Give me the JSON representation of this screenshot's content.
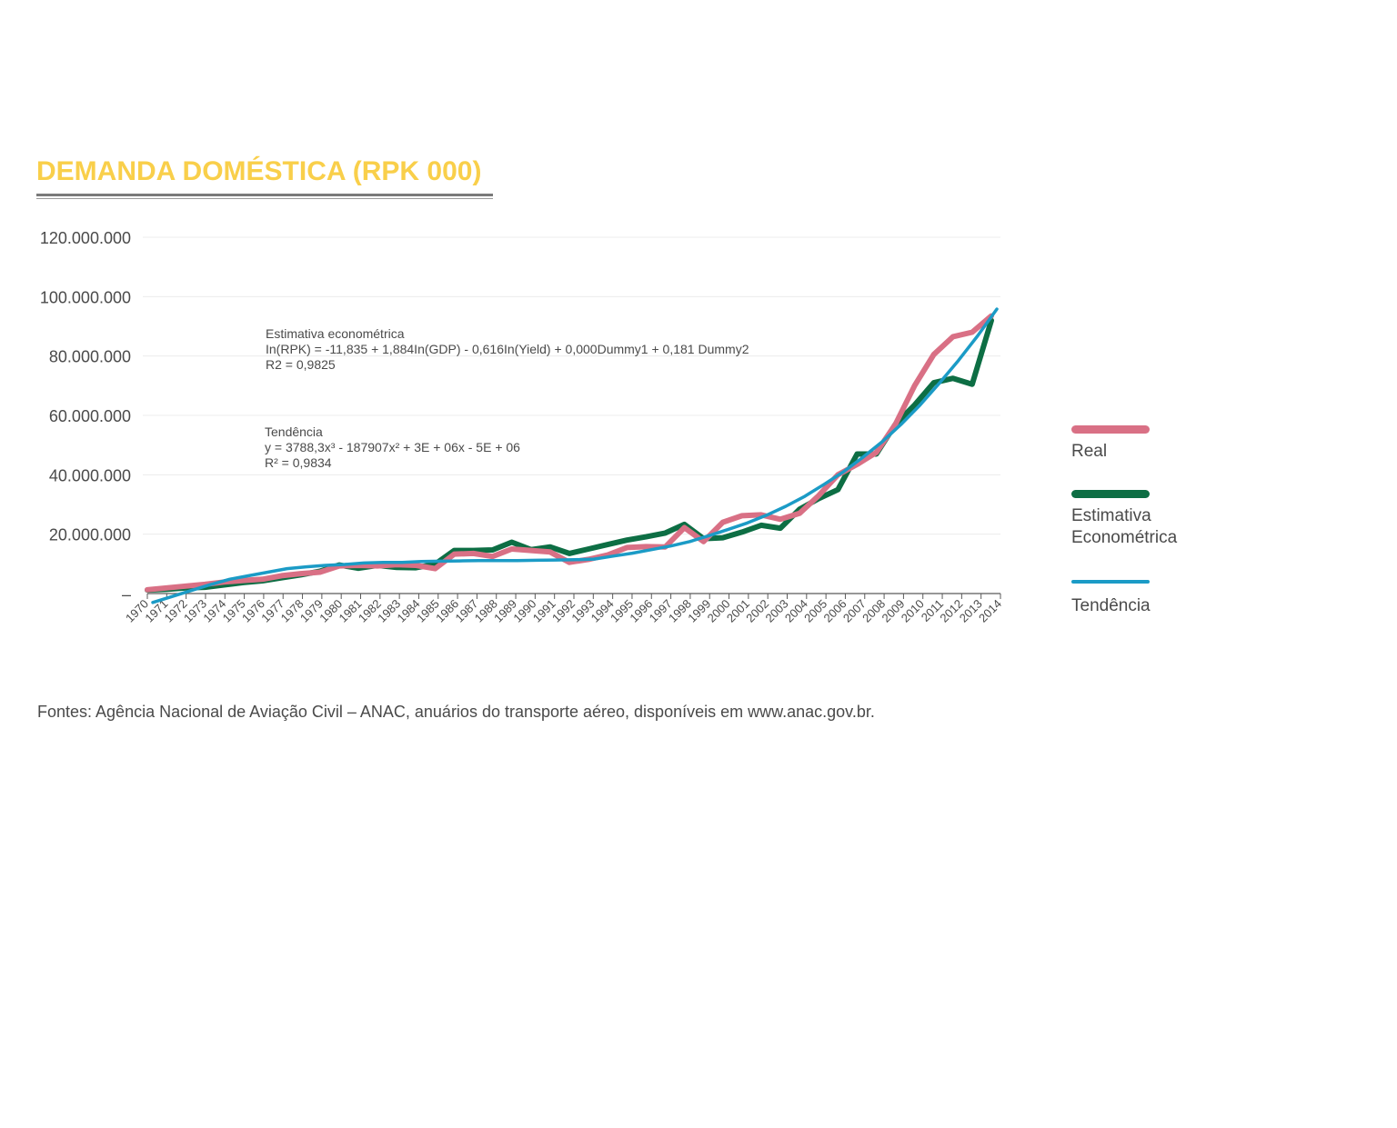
{
  "title": "DEMANDA DOMÉSTICA (RPK 000)",
  "source": "Fontes: Agência Nacional de Aviação Civil – ANAC, anuários do transporte aéreo, disponíveis em www.anac.gov.br.",
  "colors": {
    "title": "#f9cf4a",
    "real": "#d97085",
    "econometrica": "#0d6e44",
    "tendencia": "#1b9bc6"
  },
  "annotations": {
    "econometric": {
      "label": "Estimativa econométrica",
      "formula": "In(RPK) = -11,835 + 1,884In(GDP) - 0,616In(Yield) + 0,000Dummy1 + 0,181 Dummy2",
      "r2": "R2 = 0,9825"
    },
    "trend": {
      "label": "Tendência",
      "formula": "y = 3788,3x³ - 187907x² + 3E + 06x - 5E + 06",
      "r2": "R² = 0,9834"
    }
  },
  "legend": [
    {
      "key": "real",
      "label": "Real"
    },
    {
      "key": "econometrica",
      "label": "Estimativa Econométrica"
    },
    {
      "key": "tendencia",
      "label": "Tendência"
    }
  ],
  "chart_data": {
    "type": "line",
    "ylim": [
      0,
      120000000
    ],
    "yticks": [
      0,
      20000000,
      40000000,
      60000000,
      80000000,
      100000000,
      120000000
    ],
    "ytick_labels": [
      "–",
      "20.000.000",
      "40.000.000",
      "60.000.000",
      "80.000.000",
      "100.000.000",
      "120.000.000"
    ],
    "grid": true,
    "legend_position": "right",
    "x": [
      "1970",
      "1971",
      "1972",
      "1973",
      "1974",
      "1975",
      "1976",
      "1977",
      "1978",
      "1979",
      "1980",
      "1981",
      "1982",
      "1983",
      "1984",
      "1985",
      "1986",
      "1987",
      "1988",
      "1989",
      "1990",
      "1991",
      "1992",
      "1993",
      "1994",
      "1995",
      "1996",
      "1997",
      "1998",
      "1999",
      "2000",
      "2001",
      "2002",
      "2003",
      "2004",
      "2005",
      "2006",
      "2007",
      "2008",
      "2009",
      "2010",
      "2011",
      "2012",
      "2013",
      "2014"
    ],
    "series": [
      {
        "key": "econometrica",
        "name": "Estimativa Econométrica",
        "values": [
          1200000,
          1400000,
          1900000,
          2100000,
          2900000,
          3700000,
          4300000,
          5300000,
          6300000,
          7500000,
          9600000,
          8500000,
          9500000,
          8800000,
          8700000,
          9900000,
          14500000,
          14500000,
          14700000,
          17300000,
          14800000,
          15700000,
          13500000,
          15000000,
          16500000,
          18000000,
          19100000,
          20400000,
          23300000,
          18500000,
          18800000,
          20700000,
          23000000,
          22000000,
          28400000,
          32000000,
          35000000,
          47000000,
          47000000,
          57000000,
          63500000,
          71000000,
          72500000,
          70500000,
          92000000
        ]
      },
      {
        "key": "real",
        "name": "Real",
        "values": [
          1300000,
          1900000,
          2500000,
          3100000,
          3900000,
          4400000,
          4800000,
          6000000,
          6700000,
          7200000,
          9300000,
          9500000,
          9300000,
          9700000,
          9500000,
          8400000,
          13300000,
          13500000,
          12500000,
          15000000,
          14500000,
          14000000,
          10500000,
          11500000,
          13000000,
          15500000,
          15800000,
          15700000,
          22200000,
          17500000,
          24000000,
          26200000,
          26500000,
          25000000,
          27000000,
          33000000,
          40000000,
          43500000,
          47500000,
          57000000,
          70000000,
          80500000,
          86500000,
          88000000,
          93500000
        ]
      },
      {
        "key": "tendencia",
        "name": "Tendência",
        "values": [
          -3000000,
          -1000000,
          1000000,
          3000000,
          4800000,
          6000000,
          7200000,
          8400000,
          9000000,
          9500000,
          9800000,
          10300000,
          10500000,
          10500000,
          10800000,
          10900000,
          11000000,
          11100000,
          11100000,
          11100000,
          11200000,
          11300000,
          11400000,
          11600000,
          12600000,
          13600000,
          14800000,
          16000000,
          17500000,
          19500000,
          21600000,
          23800000,
          26400000,
          29400000,
          32800000,
          36800000,
          41000000,
          45800000,
          51000000,
          56900000,
          63500000,
          70800000,
          78500000,
          86800000,
          95800000
        ]
      }
    ]
  }
}
